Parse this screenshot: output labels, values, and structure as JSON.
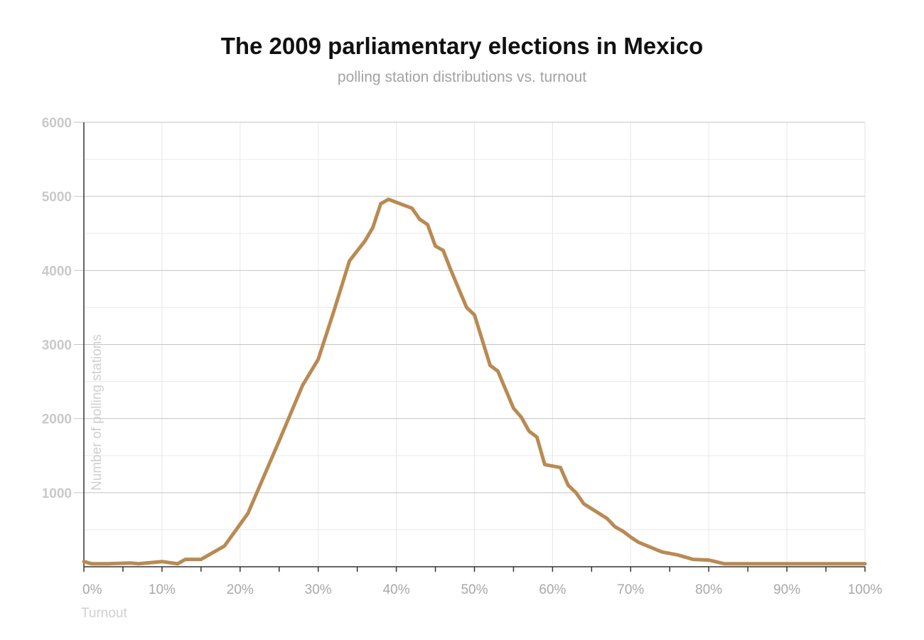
{
  "chart_data": {
    "type": "line",
    "title": "The 2009 parliamentary elections in Mexico",
    "subtitle": "polling station distributions vs. turnout",
    "xlabel": "Turnout",
    "ylabel": "Number of polling stations",
    "xlim": [
      0,
      100
    ],
    "ylim": [
      0,
      6000
    ],
    "x_ticks": [
      0,
      10,
      20,
      30,
      40,
      50,
      60,
      70,
      80,
      90,
      100
    ],
    "x_tick_labels": [
      "0%",
      "10%",
      "20%",
      "30%",
      "40%",
      "50%",
      "60%",
      "70%",
      "80%",
      "90%",
      "100%"
    ],
    "y_ticks": [
      1000,
      2000,
      3000,
      4000,
      5000,
      6000
    ],
    "y_tick_labels": [
      "1000",
      "2000",
      "3000",
      "4000",
      "5000",
      "6000"
    ],
    "grid": true,
    "line_color": "#b98a52",
    "series": [
      {
        "x": [
          0,
          1,
          3,
          6,
          7,
          10,
          12,
          13,
          15,
          18,
          21,
          25,
          28,
          30,
          32,
          34,
          36,
          37,
          38,
          39,
          42,
          43,
          44,
          45,
          46,
          47,
          48,
          49,
          50,
          52,
          53,
          55,
          56,
          57,
          58,
          59,
          61,
          62,
          63,
          64,
          67,
          68,
          69,
          70,
          71,
          74,
          76,
          78,
          80,
          82,
          100
        ],
        "y": [
          70,
          40,
          40,
          50,
          40,
          70,
          40,
          100,
          100,
          280,
          720,
          1700,
          2450,
          2800,
          3450,
          4130,
          4400,
          4580,
          4900,
          4960,
          4840,
          4690,
          4620,
          4330,
          4270,
          4000,
          3750,
          3500,
          3400,
          2720,
          2640,
          2140,
          2020,
          1830,
          1750,
          1380,
          1340,
          1100,
          1000,
          850,
          650,
          540,
          480,
          400,
          330,
          200,
          160,
          100,
          90,
          40,
          40
        ]
      }
    ]
  }
}
